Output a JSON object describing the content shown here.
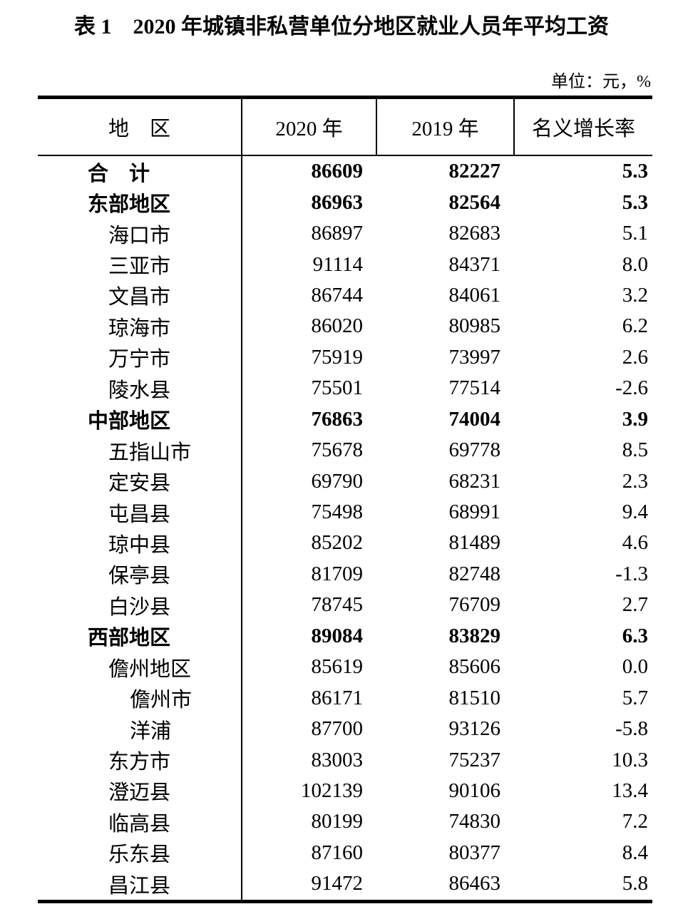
{
  "page": {
    "title": "表 1　2020 年城镇非私营单位分地区就业人员年平均工资",
    "unit_note": "单位：元，%"
  },
  "table": {
    "columns": [
      "地　区",
      "2020 年",
      "2019 年",
      "名义增长率"
    ],
    "rows": [
      {
        "region": "合　计",
        "v2020": "86609",
        "v2019": "82227",
        "growth": "5.3",
        "bold": true,
        "indent": 0
      },
      {
        "region": "东部地区",
        "v2020": "86963",
        "v2019": "82564",
        "growth": "5.3",
        "bold": true,
        "indent": 0
      },
      {
        "region": "海口市",
        "v2020": "86897",
        "v2019": "82683",
        "growth": "5.1",
        "bold": false,
        "indent": 1
      },
      {
        "region": "三亚市",
        "v2020": "91114",
        "v2019": "84371",
        "growth": "8.0",
        "bold": false,
        "indent": 1
      },
      {
        "region": "文昌市",
        "v2020": "86744",
        "v2019": "84061",
        "growth": "3.2",
        "bold": false,
        "indent": 1
      },
      {
        "region": "琼海市",
        "v2020": "86020",
        "v2019": "80985",
        "growth": "6.2",
        "bold": false,
        "indent": 1
      },
      {
        "region": "万宁市",
        "v2020": "75919",
        "v2019": "73997",
        "growth": "2.6",
        "bold": false,
        "indent": 1
      },
      {
        "region": "陵水县",
        "v2020": "75501",
        "v2019": "77514",
        "growth": "-2.6",
        "bold": false,
        "indent": 1
      },
      {
        "region": "中部地区",
        "v2020": "76863",
        "v2019": "74004",
        "growth": "3.9",
        "bold": true,
        "indent": 0
      },
      {
        "region": "五指山市",
        "v2020": "75678",
        "v2019": "69778",
        "growth": "8.5",
        "bold": false,
        "indent": 1
      },
      {
        "region": "定安县",
        "v2020": "69790",
        "v2019": "68231",
        "growth": "2.3",
        "bold": false,
        "indent": 1
      },
      {
        "region": "屯昌县",
        "v2020": "75498",
        "v2019": "68991",
        "growth": "9.4",
        "bold": false,
        "indent": 1
      },
      {
        "region": "琼中县",
        "v2020": "85202",
        "v2019": "81489",
        "growth": "4.6",
        "bold": false,
        "indent": 1
      },
      {
        "region": "保亭县",
        "v2020": "81709",
        "v2019": "82748",
        "growth": "-1.3",
        "bold": false,
        "indent": 1
      },
      {
        "region": "白沙县",
        "v2020": "78745",
        "v2019": "76709",
        "growth": "2.7",
        "bold": false,
        "indent": 1
      },
      {
        "region": "西部地区",
        "v2020": "89084",
        "v2019": "83829",
        "growth": "6.3",
        "bold": true,
        "indent": 0
      },
      {
        "region": "儋州地区",
        "v2020": "85619",
        "v2019": "85606",
        "growth": "0.0",
        "bold": false,
        "indent": 1
      },
      {
        "region": "儋州市",
        "v2020": "86171",
        "v2019": "81510",
        "growth": "5.7",
        "bold": false,
        "indent": 2
      },
      {
        "region": "洋浦",
        "v2020": "87700",
        "v2019": "93126",
        "growth": "-5.8",
        "bold": false,
        "indent": 2
      },
      {
        "region": "东方市",
        "v2020": "83003",
        "v2019": "75237",
        "growth": "10.3",
        "bold": false,
        "indent": 1
      },
      {
        "region": "澄迈县",
        "v2020": "102139",
        "v2019": "90106",
        "growth": "13.4",
        "bold": false,
        "indent": 1
      },
      {
        "region": "临高县",
        "v2020": "80199",
        "v2019": "74830",
        "growth": "7.2",
        "bold": false,
        "indent": 1
      },
      {
        "region": "乐东县",
        "v2020": "87160",
        "v2019": "80377",
        "growth": "8.4",
        "bold": false,
        "indent": 1
      },
      {
        "region": "昌江县",
        "v2020": "91472",
        "v2019": "86463",
        "growth": "5.8",
        "bold": false,
        "indent": 1
      }
    ]
  },
  "colors": {
    "text": "#000000",
    "background": "#ffffff",
    "border": "#000000"
  }
}
